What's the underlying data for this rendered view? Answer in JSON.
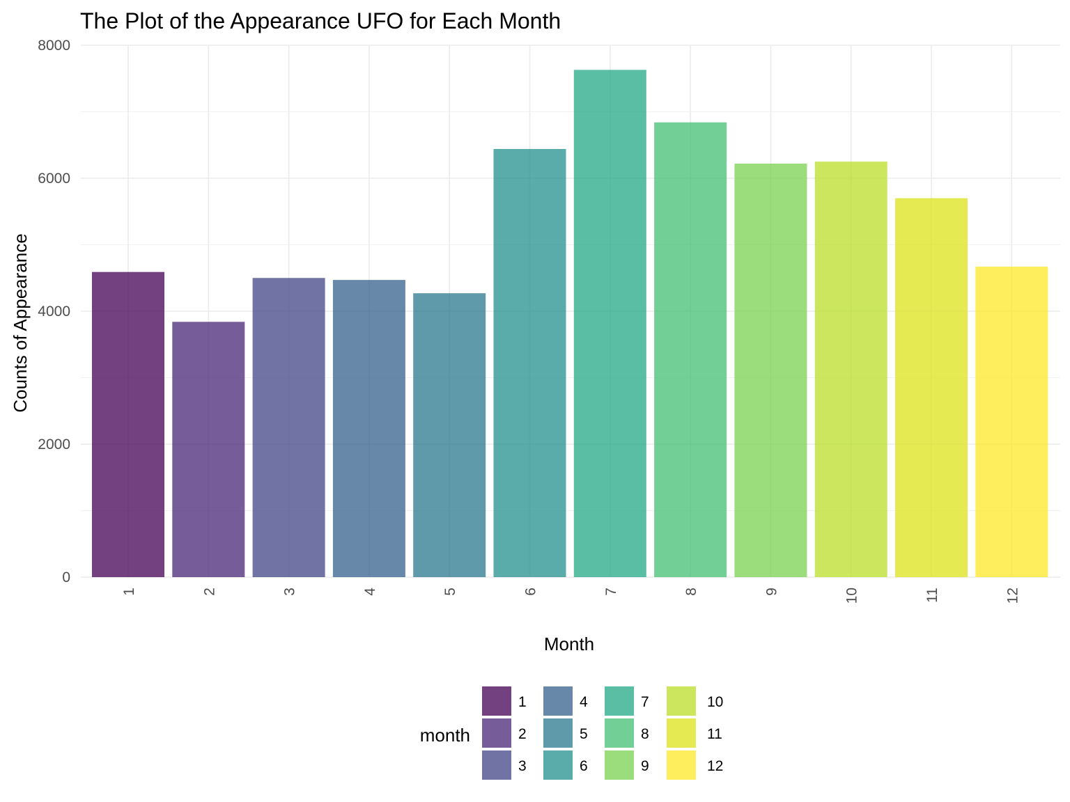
{
  "chart_data": {
    "type": "bar",
    "title": "The Plot of the Appearance UFO for Each Month",
    "xlabel": "Month",
    "ylabel": "Counts of Appearance",
    "categories": [
      "1",
      "2",
      "3",
      "4",
      "5",
      "6",
      "7",
      "8",
      "9",
      "10",
      "11",
      "12"
    ],
    "values": [
      4590,
      3840,
      4500,
      4470,
      4270,
      6440,
      7630,
      6840,
      6220,
      6250,
      5700,
      4670
    ],
    "ylim": [
      0,
      8000
    ],
    "yticks": [
      "0",
      "2000",
      "4000",
      "6000",
      "8000"
    ],
    "grid": true,
    "x_tick_rotation": "vertical",
    "legend": {
      "title": "month",
      "position": "bottom",
      "entries": [
        "1",
        "2",
        "3",
        "4",
        "5",
        "6",
        "7",
        "8",
        "9",
        "10",
        "11",
        "12"
      ]
    },
    "colors": [
      "#440154",
      "#482576",
      "#414487",
      "#35608D",
      "#2A788E",
      "#21908C",
      "#22A884",
      "#43BF71",
      "#7AD151",
      "#BBDF27",
      "#DCE319",
      "#FDE725"
    ],
    "bar_opacity": 0.75
  }
}
